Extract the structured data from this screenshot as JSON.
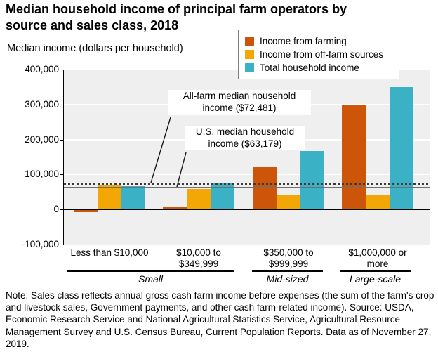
{
  "title": "Median household income of principal farm operators by\nsource and sales class, 2018",
  "subtitle": "Median income (dollars per household)",
  "legend": {
    "items": [
      {
        "label": "Income from farming",
        "color": "#CD550A"
      },
      {
        "label": "Income from off-farm sources",
        "color": "#F2A707"
      },
      {
        "label": "Total household income",
        "color": "#3AB1C5"
      }
    ]
  },
  "chart_data": {
    "type": "bar",
    "title": "Median household income of principal farm operators by source and sales class, 2018",
    "ylabel": "Median income (dollars per household)",
    "ylim": [
      -100000,
      400000
    ],
    "yticks": [
      400000,
      300000,
      200000,
      100000,
      0,
      -100000
    ],
    "ytick_labels": [
      "400,000",
      "300,000",
      "200,000",
      "100,000",
      "0",
      "-100,000"
    ],
    "gridline_values": [
      300000,
      200000,
      100000
    ],
    "grid": true,
    "legend_position": "top-right",
    "plot_background": "#efefef",
    "categories": [
      "Less than $10,000",
      "$10,000 to\n$349,999",
      "$350,000 to\n$999,999",
      "$1,000,000 or\nmore"
    ],
    "category_groups": [
      {
        "label": "Small",
        "categories": [
          0,
          1
        ]
      },
      {
        "label": "Mid-sized",
        "categories": [
          2
        ]
      },
      {
        "label": "Large-scale",
        "categories": [
          3
        ]
      }
    ],
    "series": [
      {
        "name": "Income from farming",
        "color": "#CD550A",
        "values": [
          -7000,
          8000,
          120000,
          298000
        ]
      },
      {
        "name": "Income from off-farm sources",
        "color": "#F2A707",
        "values": [
          71000,
          58000,
          42000,
          40000
        ]
      },
      {
        "name": "Total household income",
        "color": "#3AB1C5",
        "values": [
          66000,
          77000,
          167000,
          350000
        ]
      }
    ],
    "reference_lines": [
      {
        "label": "All-farm median household\nincome ($72,481)",
        "value": 72481,
        "style": "dotted",
        "color": "#3a3a3a"
      },
      {
        "label": "U.S. median household\nincome ($63,179)",
        "value": 63179,
        "style": "solid",
        "color": "#707070"
      }
    ]
  },
  "note": "Note: Sales class reflects annual gross cash farm income before expenses (the sum of the farm's crop and livestock sales, Government payments, and other cash farm-related income). Source: USDA, Economic Research Service and National Agricultural Statistics Service, Agricultural Resource Management Survey and U.S. Census Bureau, Current Population Reports. Data as of November 27, 2019."
}
